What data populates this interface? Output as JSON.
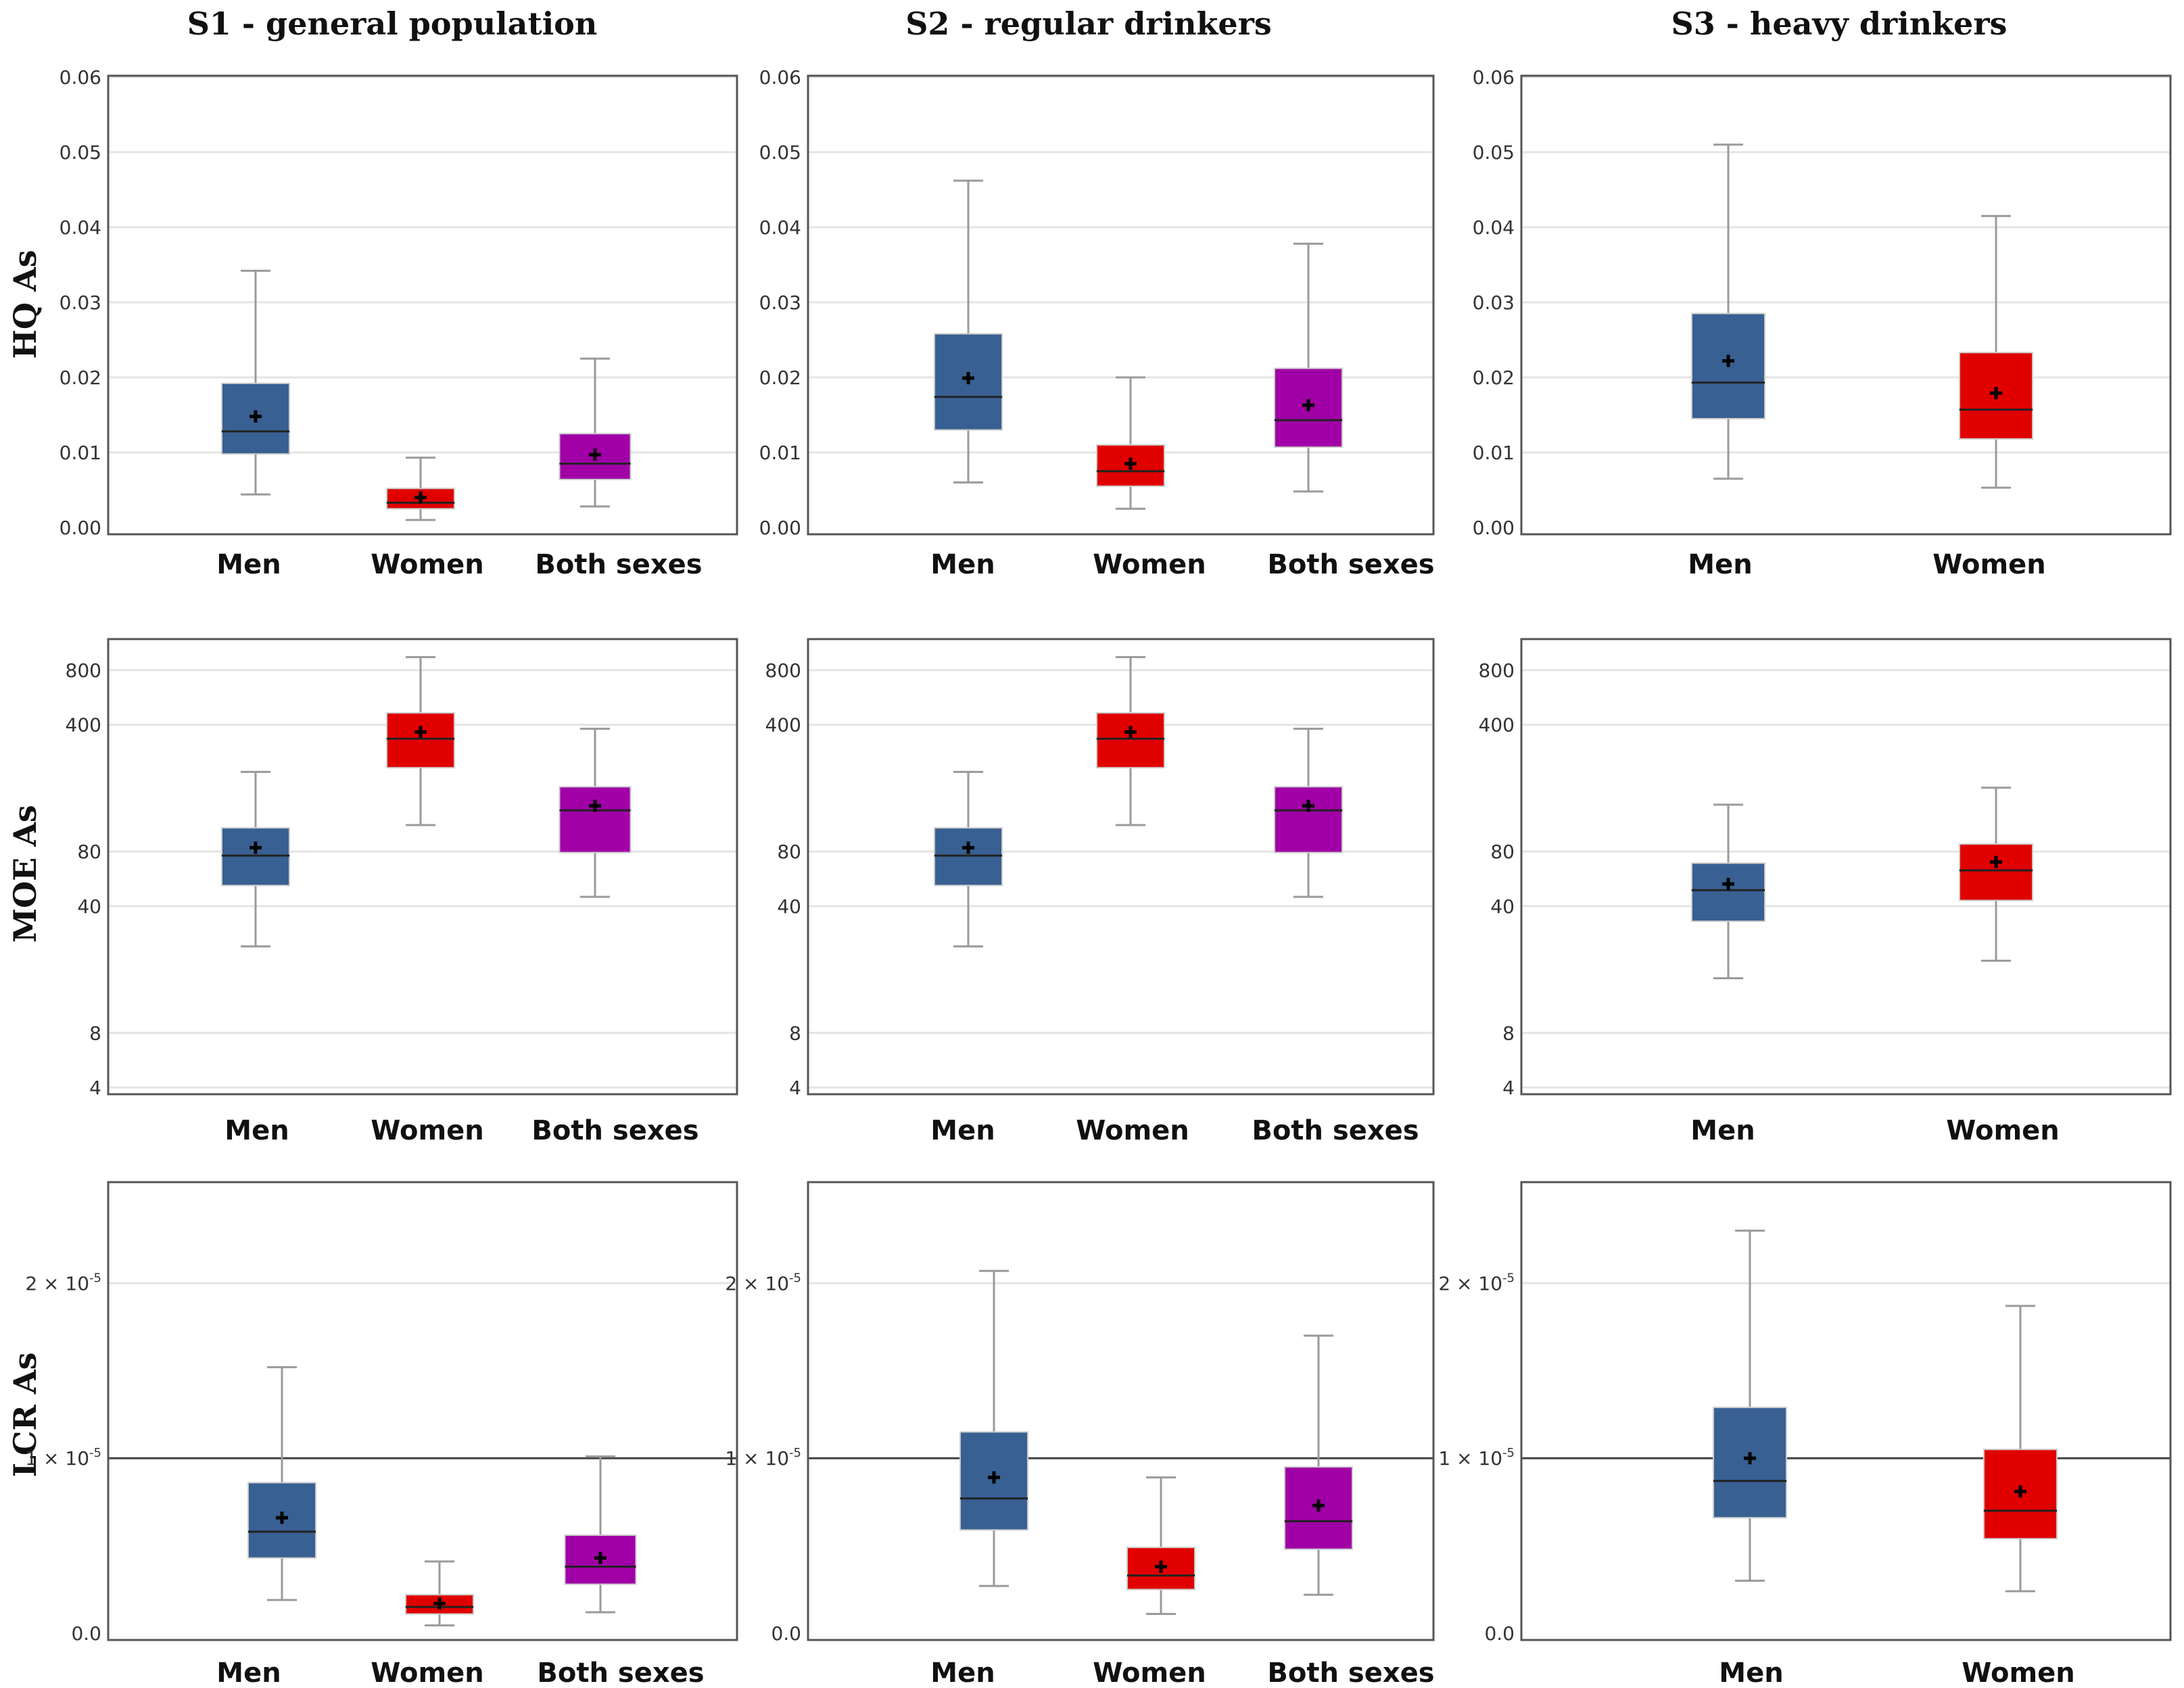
{
  "colors": {
    "men": "#386092",
    "women": "#e00000",
    "both": "#a000a6",
    "whisker": "#9a9a9a",
    "frame": "#555555",
    "grid": "#e4e4e4",
    "refline": "#444444"
  },
  "column_titles": [
    "S1 - general population",
    "S2 - regular drinkers",
    "S3 - heavy drinkers"
  ],
  "row_labels": [
    "HQ As",
    "MOE As",
    "LCR As"
  ],
  "chart_data": [
    {
      "type": "box",
      "title": "S1 - general population",
      "ylabel": "HQ As",
      "categories": [
        "Men",
        "Women",
        "Both sexes"
      ],
      "ylim": [
        0,
        0.06
      ],
      "yticks": [
        "0.00",
        "0.01",
        "0.02",
        "0.03",
        "0.04",
        "0.05",
        "0.06"
      ],
      "grid": true,
      "boxes": [
        {
          "name": "Men",
          "color": "men",
          "min": 0.0044,
          "q1": 0.0098,
          "median": 0.0128,
          "q3": 0.0192,
          "max": 0.0342,
          "mean": 0.0148
        },
        {
          "name": "Women",
          "color": "women",
          "min": 0.001,
          "q1": 0.0025,
          "median": 0.0033,
          "q3": 0.0052,
          "max": 0.0093,
          "mean": 0.004
        },
        {
          "name": "Both sexes",
          "color": "both",
          "min": 0.0028,
          "q1": 0.0064,
          "median": 0.0085,
          "q3": 0.0125,
          "max": 0.0225,
          "mean": 0.0097
        }
      ]
    },
    {
      "type": "box",
      "title": "S2 - regular drinkers",
      "ylabel": "HQ As",
      "categories": [
        "Men",
        "Women",
        "Both sexes"
      ],
      "ylim": [
        0,
        0.06
      ],
      "yticks": [
        "0.00",
        "0.01",
        "0.02",
        "0.03",
        "0.04",
        "0.05",
        "0.06"
      ],
      "grid": true,
      "boxes": [
        {
          "name": "Men",
          "color": "men",
          "min": 0.006,
          "q1": 0.013,
          "median": 0.0174,
          "q3": 0.0258,
          "max": 0.0462,
          "mean": 0.0199
        },
        {
          "name": "Women",
          "color": "women",
          "min": 0.0025,
          "q1": 0.0055,
          "median": 0.0075,
          "q3": 0.011,
          "max": 0.02,
          "mean": 0.0085
        },
        {
          "name": "Both sexes",
          "color": "both",
          "min": 0.0048,
          "q1": 0.0107,
          "median": 0.0143,
          "q3": 0.0212,
          "max": 0.0378,
          "mean": 0.0163
        }
      ]
    },
    {
      "type": "box",
      "title": "S3 - heavy drinkers",
      "ylabel": "HQ As",
      "categories": [
        "Men",
        "Women"
      ],
      "ylim": [
        0,
        0.06
      ],
      "yticks": [
        "0.00",
        "0.01",
        "0.02",
        "0.03",
        "0.04",
        "0.05",
        "0.06"
      ],
      "grid": true,
      "boxes": [
        {
          "name": "Men",
          "color": "men",
          "min": 0.0065,
          "q1": 0.0145,
          "median": 0.0193,
          "q3": 0.0285,
          "max": 0.051,
          "mean": 0.0222
        },
        {
          "name": "Women",
          "color": "women",
          "min": 0.0053,
          "q1": 0.0118,
          "median": 0.0157,
          "q3": 0.0233,
          "max": 0.0415,
          "mean": 0.0179
        }
      ]
    },
    {
      "type": "box",
      "title": "S1 - general population",
      "ylabel": "MOE As",
      "categories": [
        "Men",
        "Women",
        "Both sexes"
      ],
      "yscale": "log",
      "ylim": [
        4,
        1000
      ],
      "yticks": [
        "4",
        "8",
        "40",
        "80",
        "400",
        "800"
      ],
      "grid": true,
      "boxes": [
        {
          "name": "Men",
          "color": "men",
          "min": 24,
          "q1": 52,
          "median": 76,
          "q3": 108,
          "max": 220,
          "mean": 84
        },
        {
          "name": "Women",
          "color": "women",
          "min": 112,
          "q1": 232,
          "median": 335,
          "q3": 465,
          "max": 945,
          "mean": 365
        },
        {
          "name": "Both sexes",
          "color": "both",
          "min": 45,
          "q1": 79,
          "median": 135,
          "q3": 182,
          "max": 380,
          "mean": 143
        }
      ]
    },
    {
      "type": "box",
      "title": "S2 - regular drinkers",
      "ylabel": "MOE As",
      "categories": [
        "Men",
        "Women",
        "Both sexes"
      ],
      "yscale": "log",
      "ylim": [
        4,
        1000
      ],
      "yticks": [
        "4",
        "8",
        "40",
        "80",
        "400",
        "800"
      ],
      "grid": true,
      "boxes": [
        {
          "name": "Men",
          "color": "men",
          "min": 24,
          "q1": 52,
          "median": 76,
          "q3": 108,
          "max": 220,
          "mean": 84
        },
        {
          "name": "Women",
          "color": "women",
          "min": 112,
          "q1": 232,
          "median": 335,
          "q3": 465,
          "max": 945,
          "mean": 365
        },
        {
          "name": "Both sexes",
          "color": "both",
          "min": 45,
          "q1": 79,
          "median": 135,
          "q3": 182,
          "max": 380,
          "mean": 143
        }
      ]
    },
    {
      "type": "box",
      "title": "S3 - heavy drinkers",
      "ylabel": "MOE As",
      "categories": [
        "Men",
        "Women"
      ],
      "yscale": "log",
      "ylim": [
        4,
        1000
      ],
      "yticks": [
        "4",
        "8",
        "40",
        "80",
        "400",
        "800"
      ],
      "grid": true,
      "boxes": [
        {
          "name": "Men",
          "color": "men",
          "min": 16,
          "q1": 33,
          "median": 49,
          "q3": 69,
          "max": 145,
          "mean": 53
        },
        {
          "name": "Women",
          "color": "women",
          "min": 20,
          "q1": 43,
          "median": 63,
          "q3": 88,
          "max": 180,
          "mean": 70
        }
      ]
    },
    {
      "type": "box",
      "title": "S1 - general population",
      "ylabel": "LCR As",
      "categories": [
        "Men",
        "Women",
        "Both sexes"
      ],
      "ylim": [
        0,
        2.5e-05
      ],
      "yticks": [
        "0.0",
        "1 × 10",
        "2 × 10"
      ],
      "ytick_exponent": "-5",
      "reference_line": 1e-05,
      "grid": true,
      "boxes": [
        {
          "name": "Men",
          "color": "men",
          "min": 1.9e-06,
          "q1": 4.3e-06,
          "median": 5.8e-06,
          "q3": 8.6e-06,
          "max": 1.52e-05,
          "mean": 6.6e-06
        },
        {
          "name": "Women",
          "color": "women",
          "min": 4.5e-07,
          "q1": 1.1e-06,
          "median": 1.5e-06,
          "q3": 2.2e-06,
          "max": 4.1e-06,
          "mean": 1.7e-06
        },
        {
          "name": "Both sexes",
          "color": "both",
          "min": 1.2e-06,
          "q1": 2.8e-06,
          "median": 3.8e-06,
          "q3": 5.6e-06,
          "max": 1.01e-05,
          "mean": 4.3e-06
        }
      ]
    },
    {
      "type": "box",
      "title": "S2 - regular drinkers",
      "ylabel": "LCR As",
      "categories": [
        "Men",
        "Women",
        "Both sexes"
      ],
      "ylim": [
        0,
        2.5e-05
      ],
      "yticks": [
        "0.0",
        "1 × 10",
        "2 × 10"
      ],
      "ytick_exponent": "-5",
      "reference_line": 1e-05,
      "grid": true,
      "boxes": [
        {
          "name": "Men",
          "color": "men",
          "min": 2.7e-06,
          "q1": 5.9e-06,
          "median": 7.7e-06,
          "q3": 1.15e-05,
          "max": 2.07e-05,
          "mean": 8.9e-06
        },
        {
          "name": "Women",
          "color": "women",
          "min": 1.1e-06,
          "q1": 2.5e-06,
          "median": 3.3e-06,
          "q3": 4.9e-06,
          "max": 8.9e-06,
          "mean": 3.8e-06
        },
        {
          "name": "Both sexes",
          "color": "both",
          "min": 2.2e-06,
          "q1": 4.8e-06,
          "median": 6.4e-06,
          "q3": 9.5e-06,
          "max": 1.7e-05,
          "mean": 7.3e-06
        }
      ]
    },
    {
      "type": "box",
      "title": "S3 - heavy drinkers",
      "ylabel": "LCR As",
      "categories": [
        "Men",
        "Women"
      ],
      "ylim": [
        0,
        2.5e-05
      ],
      "yticks": [
        "0.0",
        "1 × 10",
        "2 × 10"
      ],
      "ytick_exponent": "-5",
      "reference_line": 1e-05,
      "grid": true,
      "boxes": [
        {
          "name": "Men",
          "color": "men",
          "min": 3e-06,
          "q1": 6.6e-06,
          "median": 8.7e-06,
          "q3": 1.29e-05,
          "max": 2.3e-05,
          "mean": 1e-05
        },
        {
          "name": "Women",
          "color": "women",
          "min": 2.4e-06,
          "q1": 5.4e-06,
          "median": 7e-06,
          "q3": 1.05e-05,
          "max": 1.87e-05,
          "mean": 8.1e-06
        }
      ]
    }
  ]
}
